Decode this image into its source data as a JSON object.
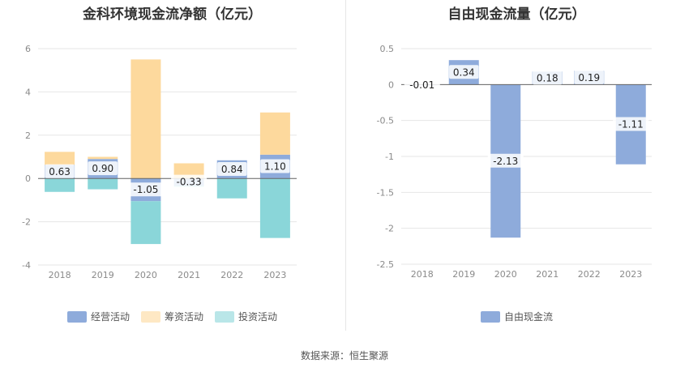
{
  "chart_data": [
    {
      "type": "bar",
      "stacked": true,
      "title": "金科环境现金流净额（亿元）",
      "categories": [
        "2018",
        "2019",
        "2020",
        "2021",
        "2022",
        "2023"
      ],
      "ylim": [
        -4,
        6
      ],
      "yticks": [
        "6",
        "4",
        "2",
        "0",
        "-2",
        "-4"
      ],
      "grid": true,
      "legend_position": "bottom",
      "series": [
        {
          "name": "经营活动",
          "color": "#8eabdb",
          "values": [
            0.63,
            0.9,
            -1.05,
            -0.33,
            0.84,
            1.1
          ]
        },
        {
          "name": "筹资活动",
          "color": "#fdd99d",
          "values": [
            0.6,
            0.1,
            5.5,
            0.7,
            0.0,
            1.95
          ]
        },
        {
          "name": "投资活动",
          "color": "#8ad6d9",
          "values": [
            -0.62,
            -0.5,
            -1.98,
            -0.05,
            -0.92,
            -2.75
          ]
        }
      ],
      "data_labels": [
        "0.63",
        "0.90",
        "-1.05",
        "-0.33",
        "0.84",
        "1.10"
      ]
    },
    {
      "type": "bar",
      "title": "自由现金流量（亿元）",
      "categories": [
        "2018",
        "2019",
        "2020",
        "2021",
        "2022",
        "2023"
      ],
      "ylim": [
        -2.5,
        0.5
      ],
      "yticks": [
        "0.5",
        "0",
        "-0.5",
        "-1",
        "-1.5",
        "-2",
        "-2.5"
      ],
      "grid": true,
      "legend_position": "bottom",
      "series": [
        {
          "name": "自由现金流",
          "color": "#8eabdb",
          "values": [
            -0.01,
            0.34,
            -2.13,
            0.18,
            0.19,
            -1.11
          ]
        }
      ],
      "data_labels": [
        "-0.01",
        "0.34",
        "-2.13",
        "0.18",
        "0.19",
        "-1.11"
      ]
    }
  ],
  "footer": {
    "source": "数据来源：恒生聚源"
  }
}
